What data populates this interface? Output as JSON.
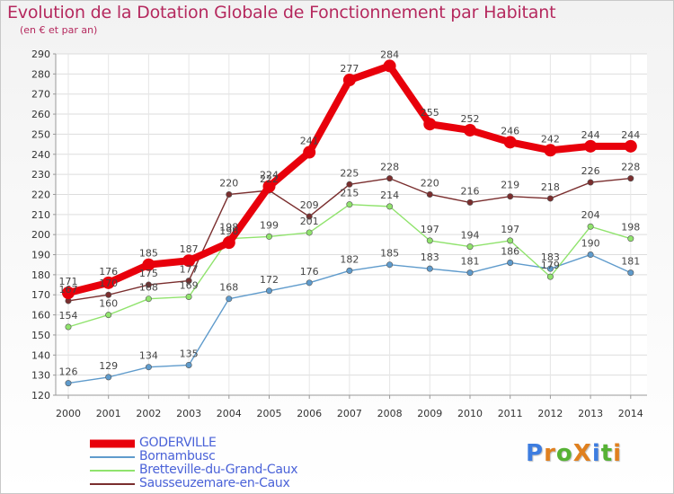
{
  "title": "Evolution de la Dotation Globale de Fonctionnement par Habitant",
  "subtitle": "(en € et par an)",
  "logo": {
    "text": "ProXiti",
    "colors": [
      "#3d7de0",
      "#e0801f",
      "#56b234",
      "#e0801f",
      "#3d7de0",
      "#56b234",
      "#e0801f"
    ]
  },
  "chart_data": {
    "type": "line",
    "x": [
      2000,
      2001,
      2002,
      2003,
      2004,
      2005,
      2006,
      2007,
      2008,
      2009,
      2010,
      2011,
      2012,
      2013,
      2014
    ],
    "ylim": [
      120,
      290
    ],
    "yticks": [
      120,
      130,
      140,
      150,
      160,
      170,
      180,
      190,
      200,
      210,
      220,
      230,
      240,
      250,
      260,
      270,
      280,
      290
    ],
    "grid": true,
    "legend": "bottom-left",
    "series": [
      {
        "name": "GODERVILLE",
        "color": "#e8000b",
        "values": [
          171,
          176,
          185,
          187,
          196,
          224,
          241,
          277,
          284,
          255,
          252,
          246,
          242,
          244,
          244
        ],
        "labels": [
          "171",
          "176",
          "185",
          "187",
          "196",
          "224",
          "241",
          "277",
          "284",
          "255",
          "252",
          "246",
          "242",
          "244",
          "244"
        ]
      },
      {
        "name": "Bornambusc",
        "color": "#5f9bcc",
        "values": [
          126,
          129,
          134,
          135,
          168,
          172,
          176,
          182,
          185,
          183,
          181,
          186,
          183,
          190,
          181
        ],
        "labels": [
          "126",
          "129",
          "134",
          "135",
          "168",
          "172",
          "176",
          "182",
          "185",
          "183",
          "181",
          "186",
          "183",
          "190",
          "181"
        ]
      },
      {
        "name": "Bretteville-du-Grand-Caux",
        "color": "#90e36d",
        "values": [
          154,
          160,
          168,
          169,
          198,
          199,
          201,
          215,
          214,
          197,
          194,
          197,
          179,
          204,
          198
        ],
        "labels": [
          "154",
          "160",
          "168",
          "169",
          "198",
          "199",
          "201",
          "215",
          "214",
          "197",
          "194",
          "197",
          "179",
          "204",
          "198"
        ]
      },
      {
        "name": "Sausseuzemare-en-Caux",
        "color": "#7a2e2e",
        "values": [
          167,
          170,
          175,
          177,
          220,
          222,
          209,
          225,
          228,
          220,
          216,
          219,
          218,
          226,
          228
        ],
        "labels": [
          "167",
          "170",
          "175",
          "177",
          "220",
          "222",
          "209",
          "225",
          "228",
          "220",
          "216",
          "219",
          "218",
          "226",
          "228"
        ]
      }
    ]
  }
}
